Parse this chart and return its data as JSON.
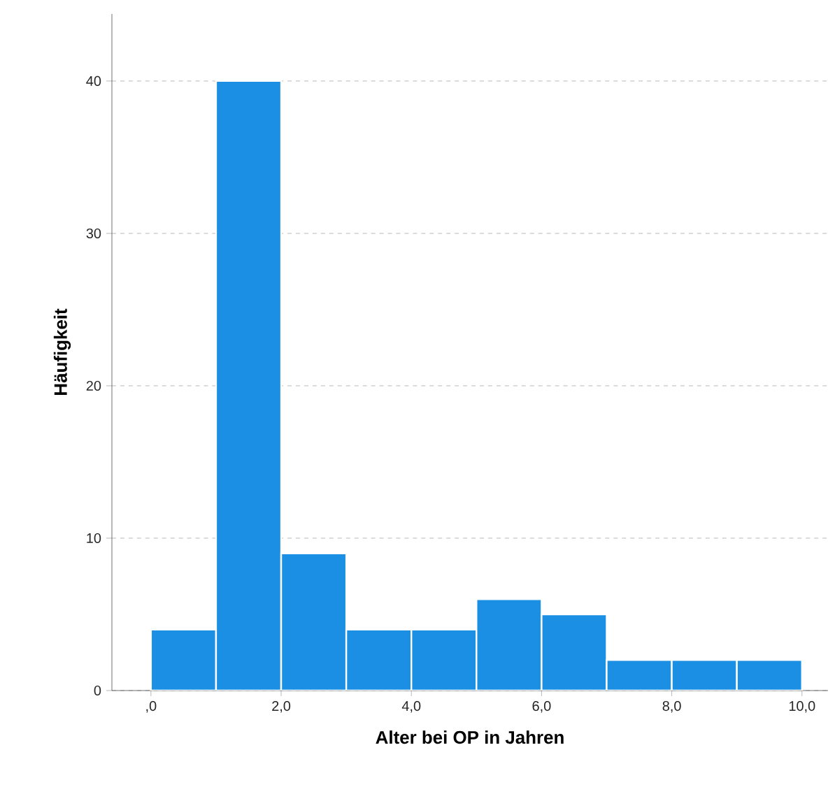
{
  "chart_data": {
    "type": "histogram",
    "xlabel": "Alter bei OP in Jahren",
    "ylabel": "Häufigkeit",
    "bins": [
      0,
      1,
      2,
      3,
      4,
      5,
      6,
      7,
      8,
      9,
      10
    ],
    "values": [
      4,
      40,
      9,
      4,
      4,
      6,
      5,
      2,
      2,
      2
    ],
    "color": "#1a8fe3",
    "xlim": [
      -0.6,
      10.4
    ],
    "ylim": [
      0,
      44.4
    ],
    "xticks": [
      {
        "value": 0,
        "label": ",0"
      },
      {
        "value": 2,
        "label": "2,0"
      },
      {
        "value": 4,
        "label": "4,0"
      },
      {
        "value": 6,
        "label": "6,0"
      },
      {
        "value": 8,
        "label": "8,0"
      },
      {
        "value": 10,
        "label": "10,0"
      }
    ],
    "yticks": [
      0,
      10,
      20,
      30,
      40
    ],
    "grid": "y"
  }
}
